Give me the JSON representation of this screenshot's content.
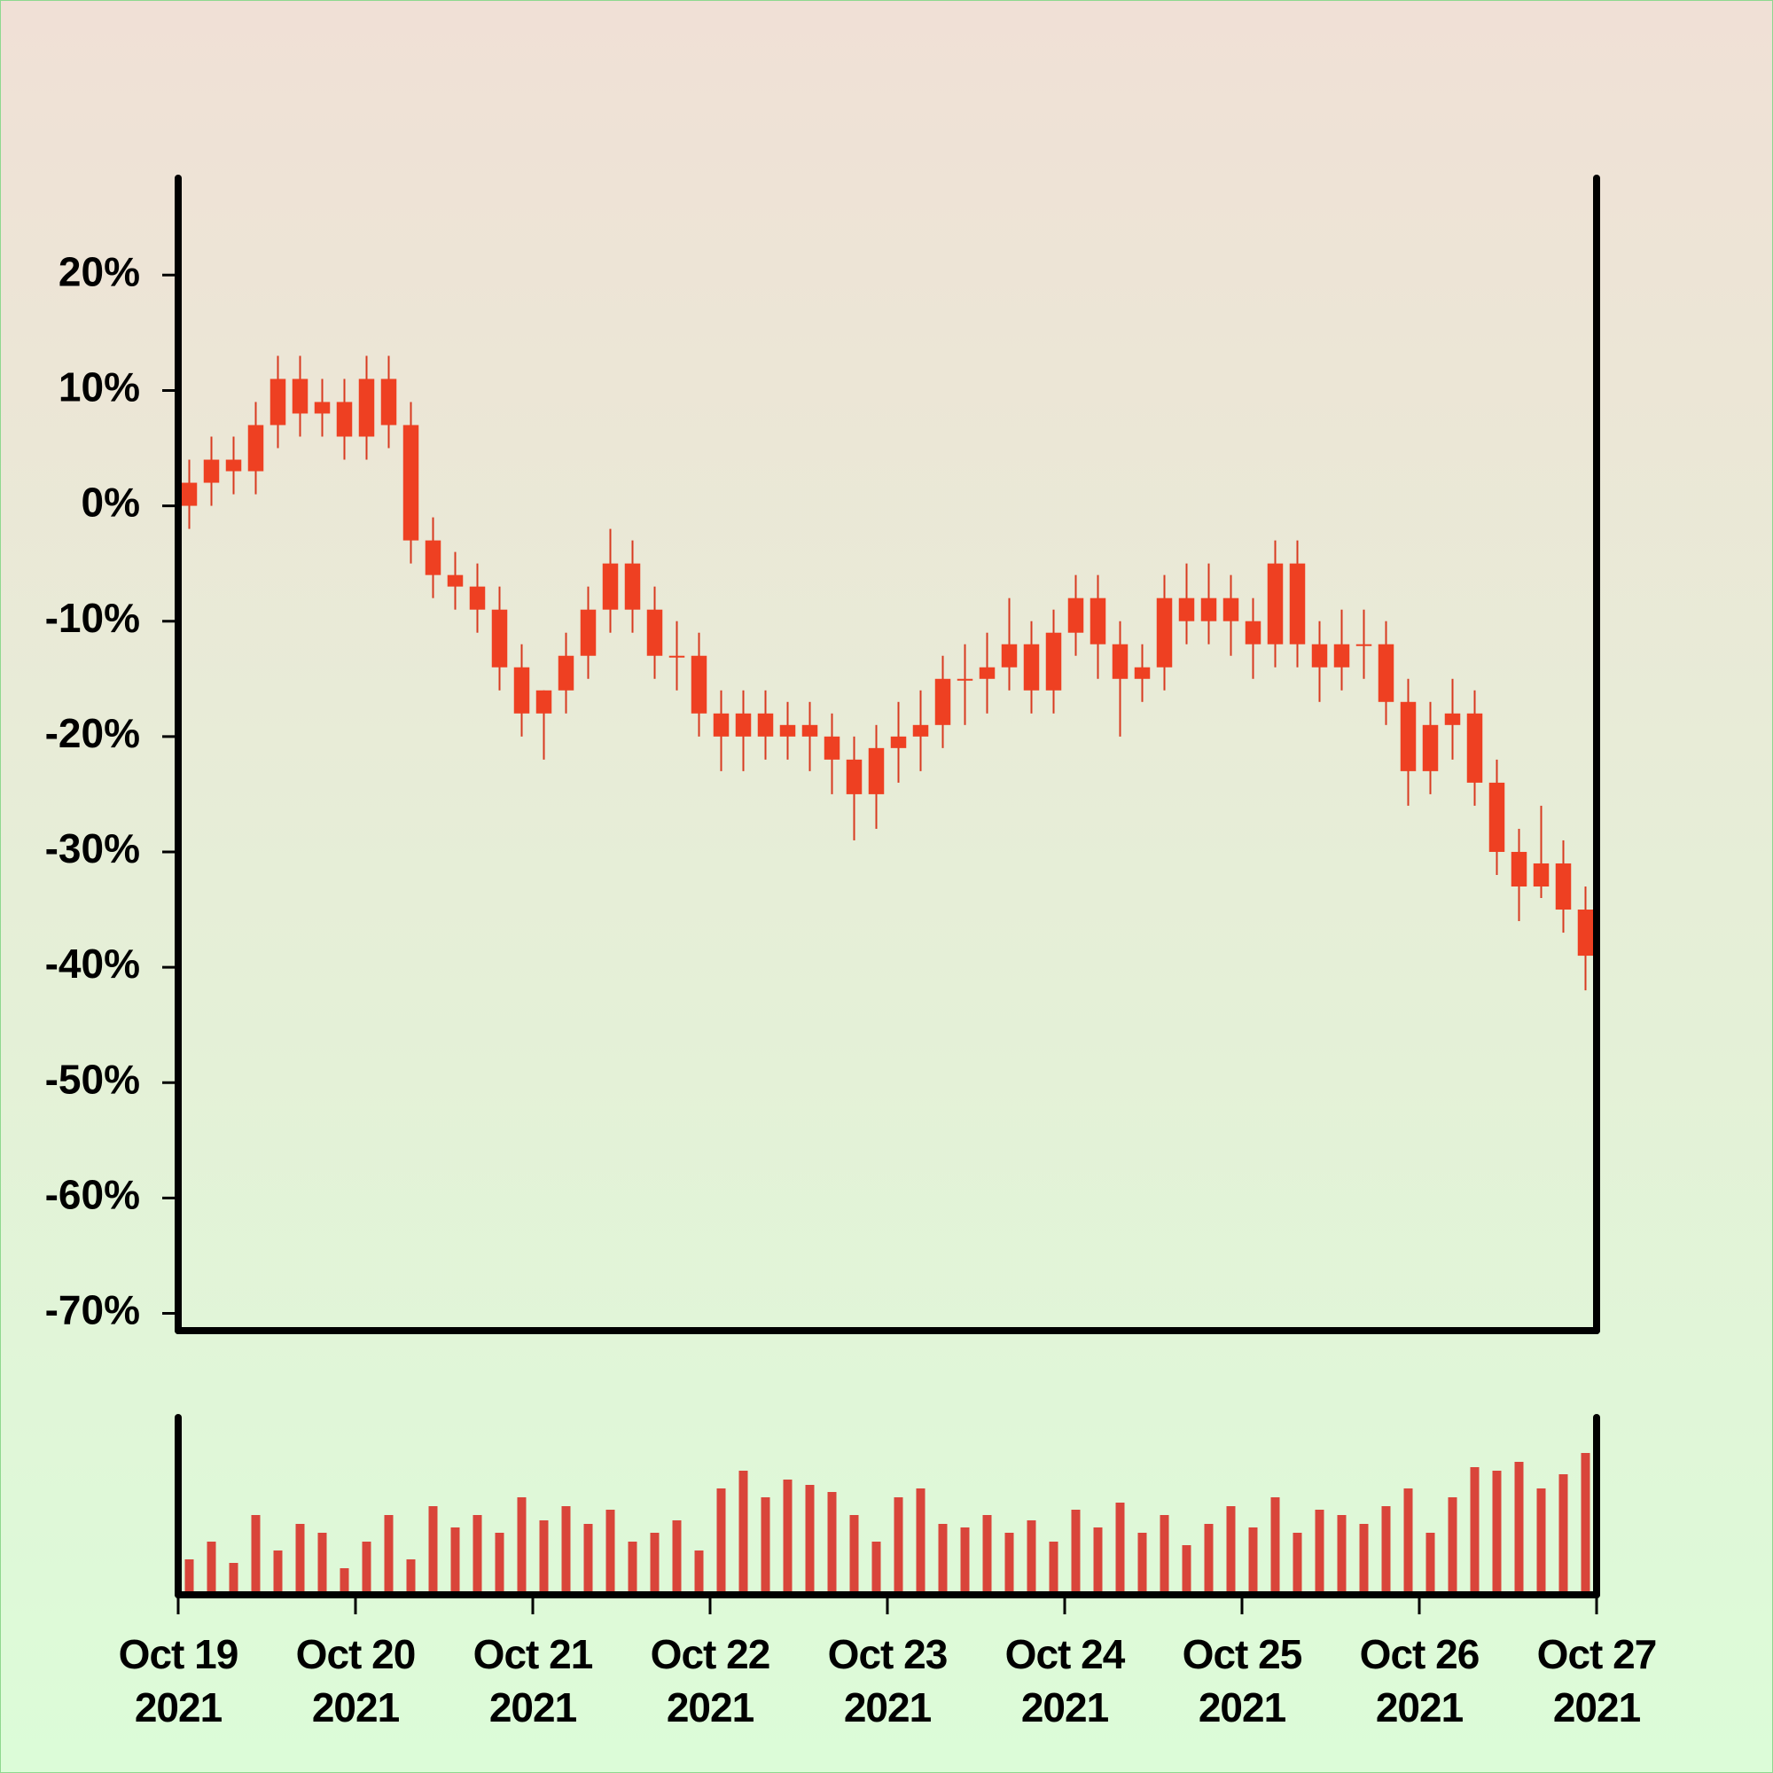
{
  "chart_data": {
    "type": "candlestick",
    "x": [
      "2021-10-19T00:00",
      "2021-10-19T03:00",
      "2021-10-19T06:00",
      "2021-10-19T09:00",
      "2021-10-19T12:00",
      "2021-10-19T15:00",
      "2021-10-19T18:00",
      "2021-10-19T21:00",
      "2021-10-20T00:00",
      "2021-10-20T03:00",
      "2021-10-20T06:00",
      "2021-10-20T09:00",
      "2021-10-20T12:00",
      "2021-10-20T15:00",
      "2021-10-20T18:00",
      "2021-10-20T21:00",
      "2021-10-21T00:00",
      "2021-10-21T03:00",
      "2021-10-21T06:00",
      "2021-10-21T09:00",
      "2021-10-21T12:00",
      "2021-10-21T15:00",
      "2021-10-21T18:00",
      "2021-10-21T21:00",
      "2021-10-22T00:00",
      "2021-10-22T03:00",
      "2021-10-22T06:00",
      "2021-10-22T09:00",
      "2021-10-22T12:00",
      "2021-10-22T15:00",
      "2021-10-22T18:00",
      "2021-10-22T21:00",
      "2021-10-23T00:00",
      "2021-10-23T03:00",
      "2021-10-23T06:00",
      "2021-10-23T09:00",
      "2021-10-23T12:00",
      "2021-10-23T15:00",
      "2021-10-23T18:00",
      "2021-10-23T21:00",
      "2021-10-24T00:00",
      "2021-10-24T03:00",
      "2021-10-24T06:00",
      "2021-10-24T09:00",
      "2021-10-24T12:00",
      "2021-10-24T15:00",
      "2021-10-24T18:00",
      "2021-10-24T21:00",
      "2021-10-25T00:00",
      "2021-10-25T03:00",
      "2021-10-25T06:00",
      "2021-10-25T09:00",
      "2021-10-25T12:00",
      "2021-10-25T15:00",
      "2021-10-25T18:00",
      "2021-10-25T21:00",
      "2021-10-26T00:00",
      "2021-10-26T03:00",
      "2021-10-26T06:00",
      "2021-10-26T09:00",
      "2021-10-26T12:00",
      "2021-10-26T15:00",
      "2021-10-26T18:00",
      "2021-10-26T21:00"
    ],
    "open": [
      0,
      2,
      4,
      3,
      7,
      11,
      8,
      9,
      6,
      11,
      7,
      -3,
      -6,
      -7,
      -9,
      -14,
      -18,
      -16,
      -13,
      -9,
      -5,
      -9,
      -13,
      -13,
      -18,
      -20,
      -18,
      -20,
      -19,
      -20,
      -22,
      -25,
      -21,
      -20,
      -19,
      -15,
      -15,
      -14,
      -12,
      -16,
      -11,
      -8,
      -12,
      -15,
      -14,
      -8,
      -10,
      -8,
      -10,
      -12,
      -5,
      -12,
      -14,
      -12,
      -12,
      -17,
      -23,
      -19,
      -18,
      -24,
      -30,
      -33,
      -31,
      -35
    ],
    "high": [
      4,
      6,
      6,
      9,
      13,
      13,
      11,
      11,
      13,
      13,
      9,
      -1,
      -4,
      -5,
      -7,
      -12,
      -16,
      -11,
      -7,
      -2,
      -3,
      -7,
      -10,
      -11,
      -16,
      -16,
      -16,
      -17,
      -17,
      -18,
      -20,
      -19,
      -17,
      -16,
      -13,
      -12,
      -11,
      -8,
      -10,
      -9,
      -6,
      -6,
      -10,
      -12,
      -6,
      -5,
      -5,
      -6,
      -8,
      -3,
      -3,
      -10,
      -9,
      -9,
      -10,
      -15,
      -17,
      -15,
      -16,
      -22,
      -28,
      -26,
      -29,
      -33
    ],
    "low": [
      -2,
      0,
      1,
      1,
      5,
      6,
      6,
      4,
      4,
      5,
      -5,
      -8,
      -9,
      -11,
      -16,
      -20,
      -22,
      -18,
      -15,
      -11,
      -11,
      -15,
      -16,
      -20,
      -23,
      -23,
      -22,
      -22,
      -23,
      -25,
      -29,
      -28,
      -24,
      -23,
      -21,
      -19,
      -18,
      -16,
      -18,
      -18,
      -13,
      -15,
      -20,
      -17,
      -16,
      -12,
      -12,
      -13,
      -15,
      -14,
      -14,
      -17,
      -16,
      -15,
      -19,
      -26,
      -25,
      -22,
      -26,
      -32,
      -36,
      -34,
      -37,
      -42
    ],
    "close": [
      2,
      4,
      3,
      7,
      11,
      8,
      9,
      6,
      11,
      7,
      -3,
      -6,
      -7,
      -9,
      -14,
      -18,
      -16,
      -13,
      -9,
      -5,
      -9,
      -13,
      -13,
      -18,
      -20,
      -18,
      -20,
      -19,
      -20,
      -22,
      -25,
      -21,
      -20,
      -19,
      -15,
      -15,
      -14,
      -12,
      -16,
      -11,
      -8,
      -12,
      -15,
      -14,
      -8,
      -10,
      -8,
      -10,
      -12,
      -5,
      -12,
      -14,
      -12,
      -12,
      -17,
      -23,
      -19,
      -18,
      -24,
      -30,
      -33,
      -31,
      -35,
      -39
    ],
    "volume": [
      20,
      30,
      18,
      45,
      25,
      40,
      35,
      15,
      30,
      45,
      20,
      50,
      38,
      45,
      35,
      55,
      42,
      50,
      40,
      48,
      30,
      35,
      42,
      25,
      60,
      70,
      55,
      65,
      62,
      58,
      45,
      30,
      55,
      60,
      40,
      38,
      45,
      35,
      42,
      30,
      48,
      38,
      52,
      35,
      45,
      28,
      40,
      50,
      38,
      55,
      35,
      48,
      45,
      40,
      50,
      60,
      35,
      55,
      72,
      70,
      75,
      60,
      68,
      80
    ],
    "color": "#ee4022",
    "wick_color": "#d83a20",
    "volume_color": "#d9453a",
    "xlim": [
      "2021-10-19T00:00",
      "2021-10-27T00:00"
    ],
    "xticks": [
      {
        "value": "2021-10-19T00:00",
        "label": "Oct 19 2021"
      },
      {
        "value": "2021-10-20T00:00",
        "label": "Oct 20 2021"
      },
      {
        "value": "2021-10-21T00:00",
        "label": "Oct 21 2021"
      },
      {
        "value": "2021-10-22T00:00",
        "label": "Oct 22 2021"
      },
      {
        "value": "2021-10-23T00:00",
        "label": "Oct 23 2021"
      },
      {
        "value": "2021-10-24T00:00",
        "label": "Oct 24 2021"
      },
      {
        "value": "2021-10-25T00:00",
        "label": "Oct 25 2021"
      },
      {
        "value": "2021-10-26T00:00",
        "label": "Oct 26 2021"
      },
      {
        "value": "2021-10-27T00:00",
        "label": "Oct 27 2021"
      }
    ],
    "ylim": [
      -71.5,
      28.4
    ],
    "yticks": [
      {
        "value": 20,
        "label": "20%"
      },
      {
        "value": 10,
        "label": "10%"
      },
      {
        "value": 0,
        "label": "0%"
      },
      {
        "value": -10,
        "label": "-10%"
      },
      {
        "value": -20,
        "label": "-20%"
      },
      {
        "value": -30,
        "label": "-30%"
      },
      {
        "value": -40,
        "label": "-40%"
      },
      {
        "value": -50,
        "label": "-50%"
      },
      {
        "value": -60,
        "label": "-60%"
      },
      {
        "value": -70,
        "label": "-70%"
      }
    ],
    "volume_ylim": [
      0,
      100
    ]
  }
}
